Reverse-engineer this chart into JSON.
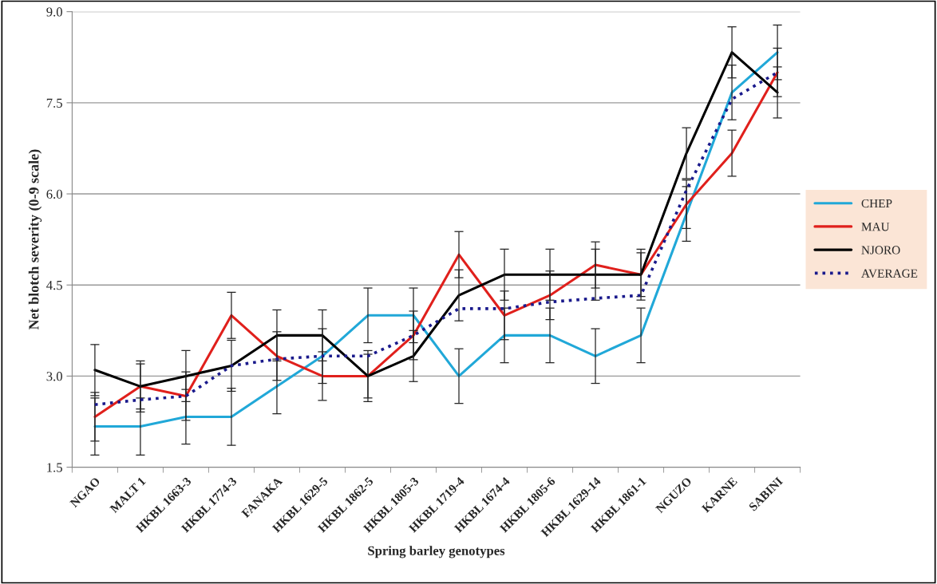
{
  "chart_data": {
    "type": "line",
    "xlabel": "Spring barley genotypes",
    "ylabel": "Net blotch severity (0-9 scale)",
    "categories": [
      "NGAO",
      "MALT 1",
      "HKBL 1663-3",
      "HKBL 1774-3",
      "FANAKA",
      "HKBL 1629-5",
      "HKBL 1862-5",
      "HKBL 1805-3",
      "HKBL 1719-4",
      "HKBL 1674-4",
      "HKBL 1805-6",
      "HKBL 1629-14",
      "HKBL 1861-1",
      "NGUZO",
      "KARNE",
      "SABINI"
    ],
    "series": [
      {
        "name": "CHEP",
        "color": "#21a8d8",
        "line_style": "solid",
        "values": [
          2.17,
          2.17,
          2.33,
          2.33,
          2.83,
          3.33,
          4.0,
          4.0,
          3.0,
          3.67,
          3.67,
          3.33,
          3.67,
          5.67,
          7.67,
          8.33
        ],
        "errors": [
          0.47,
          0.47,
          0.45,
          0.47,
          0.45,
          0.45,
          0.45,
          0.45,
          0.45,
          0.45,
          0.45,
          0.45,
          0.45,
          0.45,
          0.45,
          0.45
        ]
      },
      {
        "name": "MAU",
        "color": "#e0201c",
        "line_style": "solid",
        "values": [
          2.33,
          2.83,
          2.67,
          4.0,
          3.33,
          3.0,
          3.0,
          3.67,
          5.0,
          4.0,
          4.33,
          4.83,
          4.67,
          5.83,
          6.67,
          8.0
        ],
        "errors": [
          0.4,
          0.37,
          0.4,
          0.38,
          0.4,
          0.4,
          0.36,
          0.4,
          0.38,
          0.4,
          0.4,
          0.38,
          0.36,
          0.4,
          0.38,
          0.4
        ]
      },
      {
        "name": "NJORO",
        "color": "#000000",
        "line_style": "solid",
        "values": [
          3.1,
          2.83,
          3.0,
          3.17,
          3.67,
          3.67,
          3.0,
          3.33,
          4.33,
          4.67,
          4.67,
          4.67,
          4.67,
          6.67,
          8.33,
          7.67
        ],
        "errors": [
          0.42,
          0.42,
          0.42,
          0.42,
          0.42,
          0.42,
          0.42,
          0.42,
          0.42,
          0.42,
          0.42,
          0.42,
          0.42,
          0.42,
          0.42,
          0.42
        ]
      },
      {
        "name": "AVERAGE",
        "color": "#1a1a8c",
        "line_style": "dotted",
        "values": [
          2.53,
          2.61,
          2.67,
          3.17,
          3.28,
          3.33,
          3.33,
          3.67,
          4.11,
          4.11,
          4.22,
          4.28,
          4.33,
          6.06,
          7.56,
          8.0
        ]
      }
    ],
    "ylim": [
      1.5,
      9.0
    ],
    "yticks": [
      {
        "value": 1.5,
        "label": "1.5"
      },
      {
        "value": 3.0,
        "label": "3.0"
      },
      {
        "value": 4.5,
        "label": "4.5"
      },
      {
        "value": 6.0,
        "label": "6.0"
      },
      {
        "value": 7.5,
        "label": "7.5"
      },
      {
        "value": 9.0,
        "label": "9.0"
      }
    ],
    "grid": "y",
    "legend": "right",
    "marker": "none"
  }
}
